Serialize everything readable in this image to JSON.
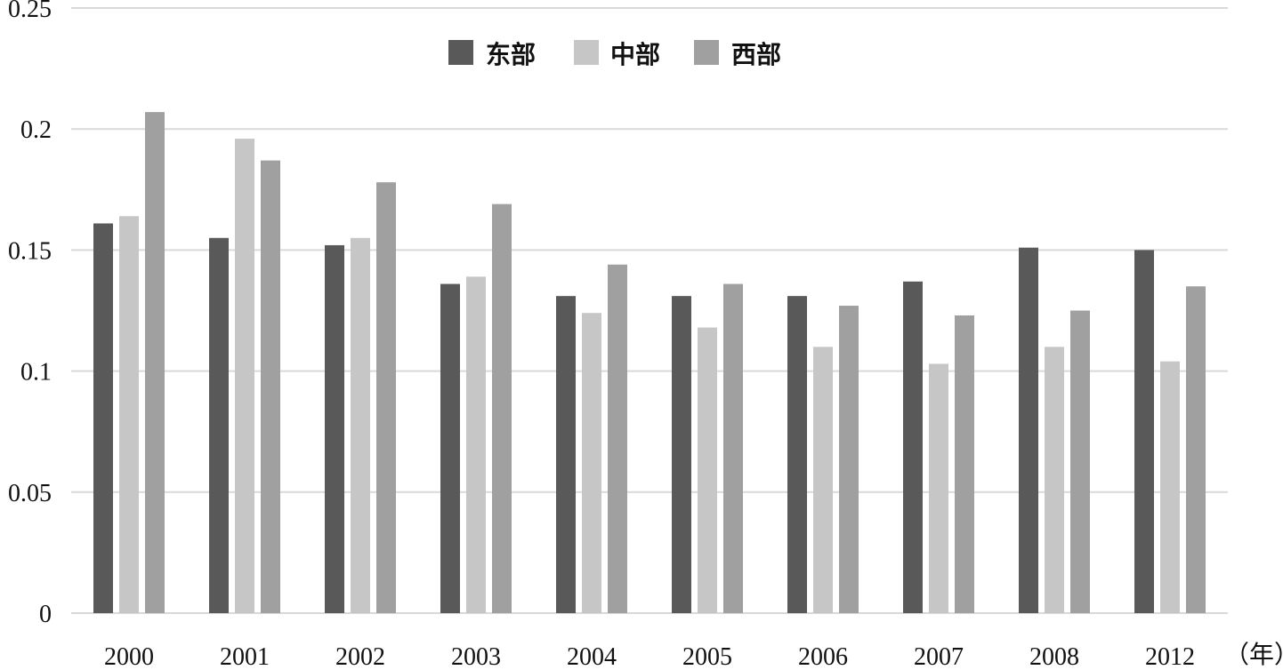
{
  "chart_data": {
    "type": "bar",
    "title": "",
    "xlabel": "",
    "ylabel": "",
    "x_unit_label": "（年）",
    "categories": [
      "2000",
      "2001",
      "2002",
      "2003",
      "2004",
      "2005",
      "2006",
      "2007",
      "2008",
      "2012"
    ],
    "series": [
      {
        "name": "东部",
        "color": "#595959",
        "values": [
          0.161,
          0.155,
          0.152,
          0.136,
          0.131,
          0.131,
          0.131,
          0.137,
          0.151,
          0.15
        ]
      },
      {
        "name": "中部",
        "color": "#c6c6c6",
        "values": [
          0.164,
          0.196,
          0.155,
          0.139,
          0.124,
          0.118,
          0.11,
          0.103,
          0.11,
          0.104
        ]
      },
      {
        "name": "西部",
        "color": "#a0a0a0",
        "values": [
          0.207,
          0.187,
          0.178,
          0.169,
          0.144,
          0.136,
          0.127,
          0.123,
          0.125,
          0.135
        ]
      }
    ],
    "ylim": [
      0,
      0.25
    ],
    "yticks": [
      0,
      0.05,
      0.1,
      0.15,
      0.2,
      0.25
    ],
    "ytick_labels": [
      "0",
      "0.05",
      "0.1",
      "0.15",
      "0.2",
      "0.25"
    ],
    "grid": true,
    "legend_position": "top-center"
  }
}
